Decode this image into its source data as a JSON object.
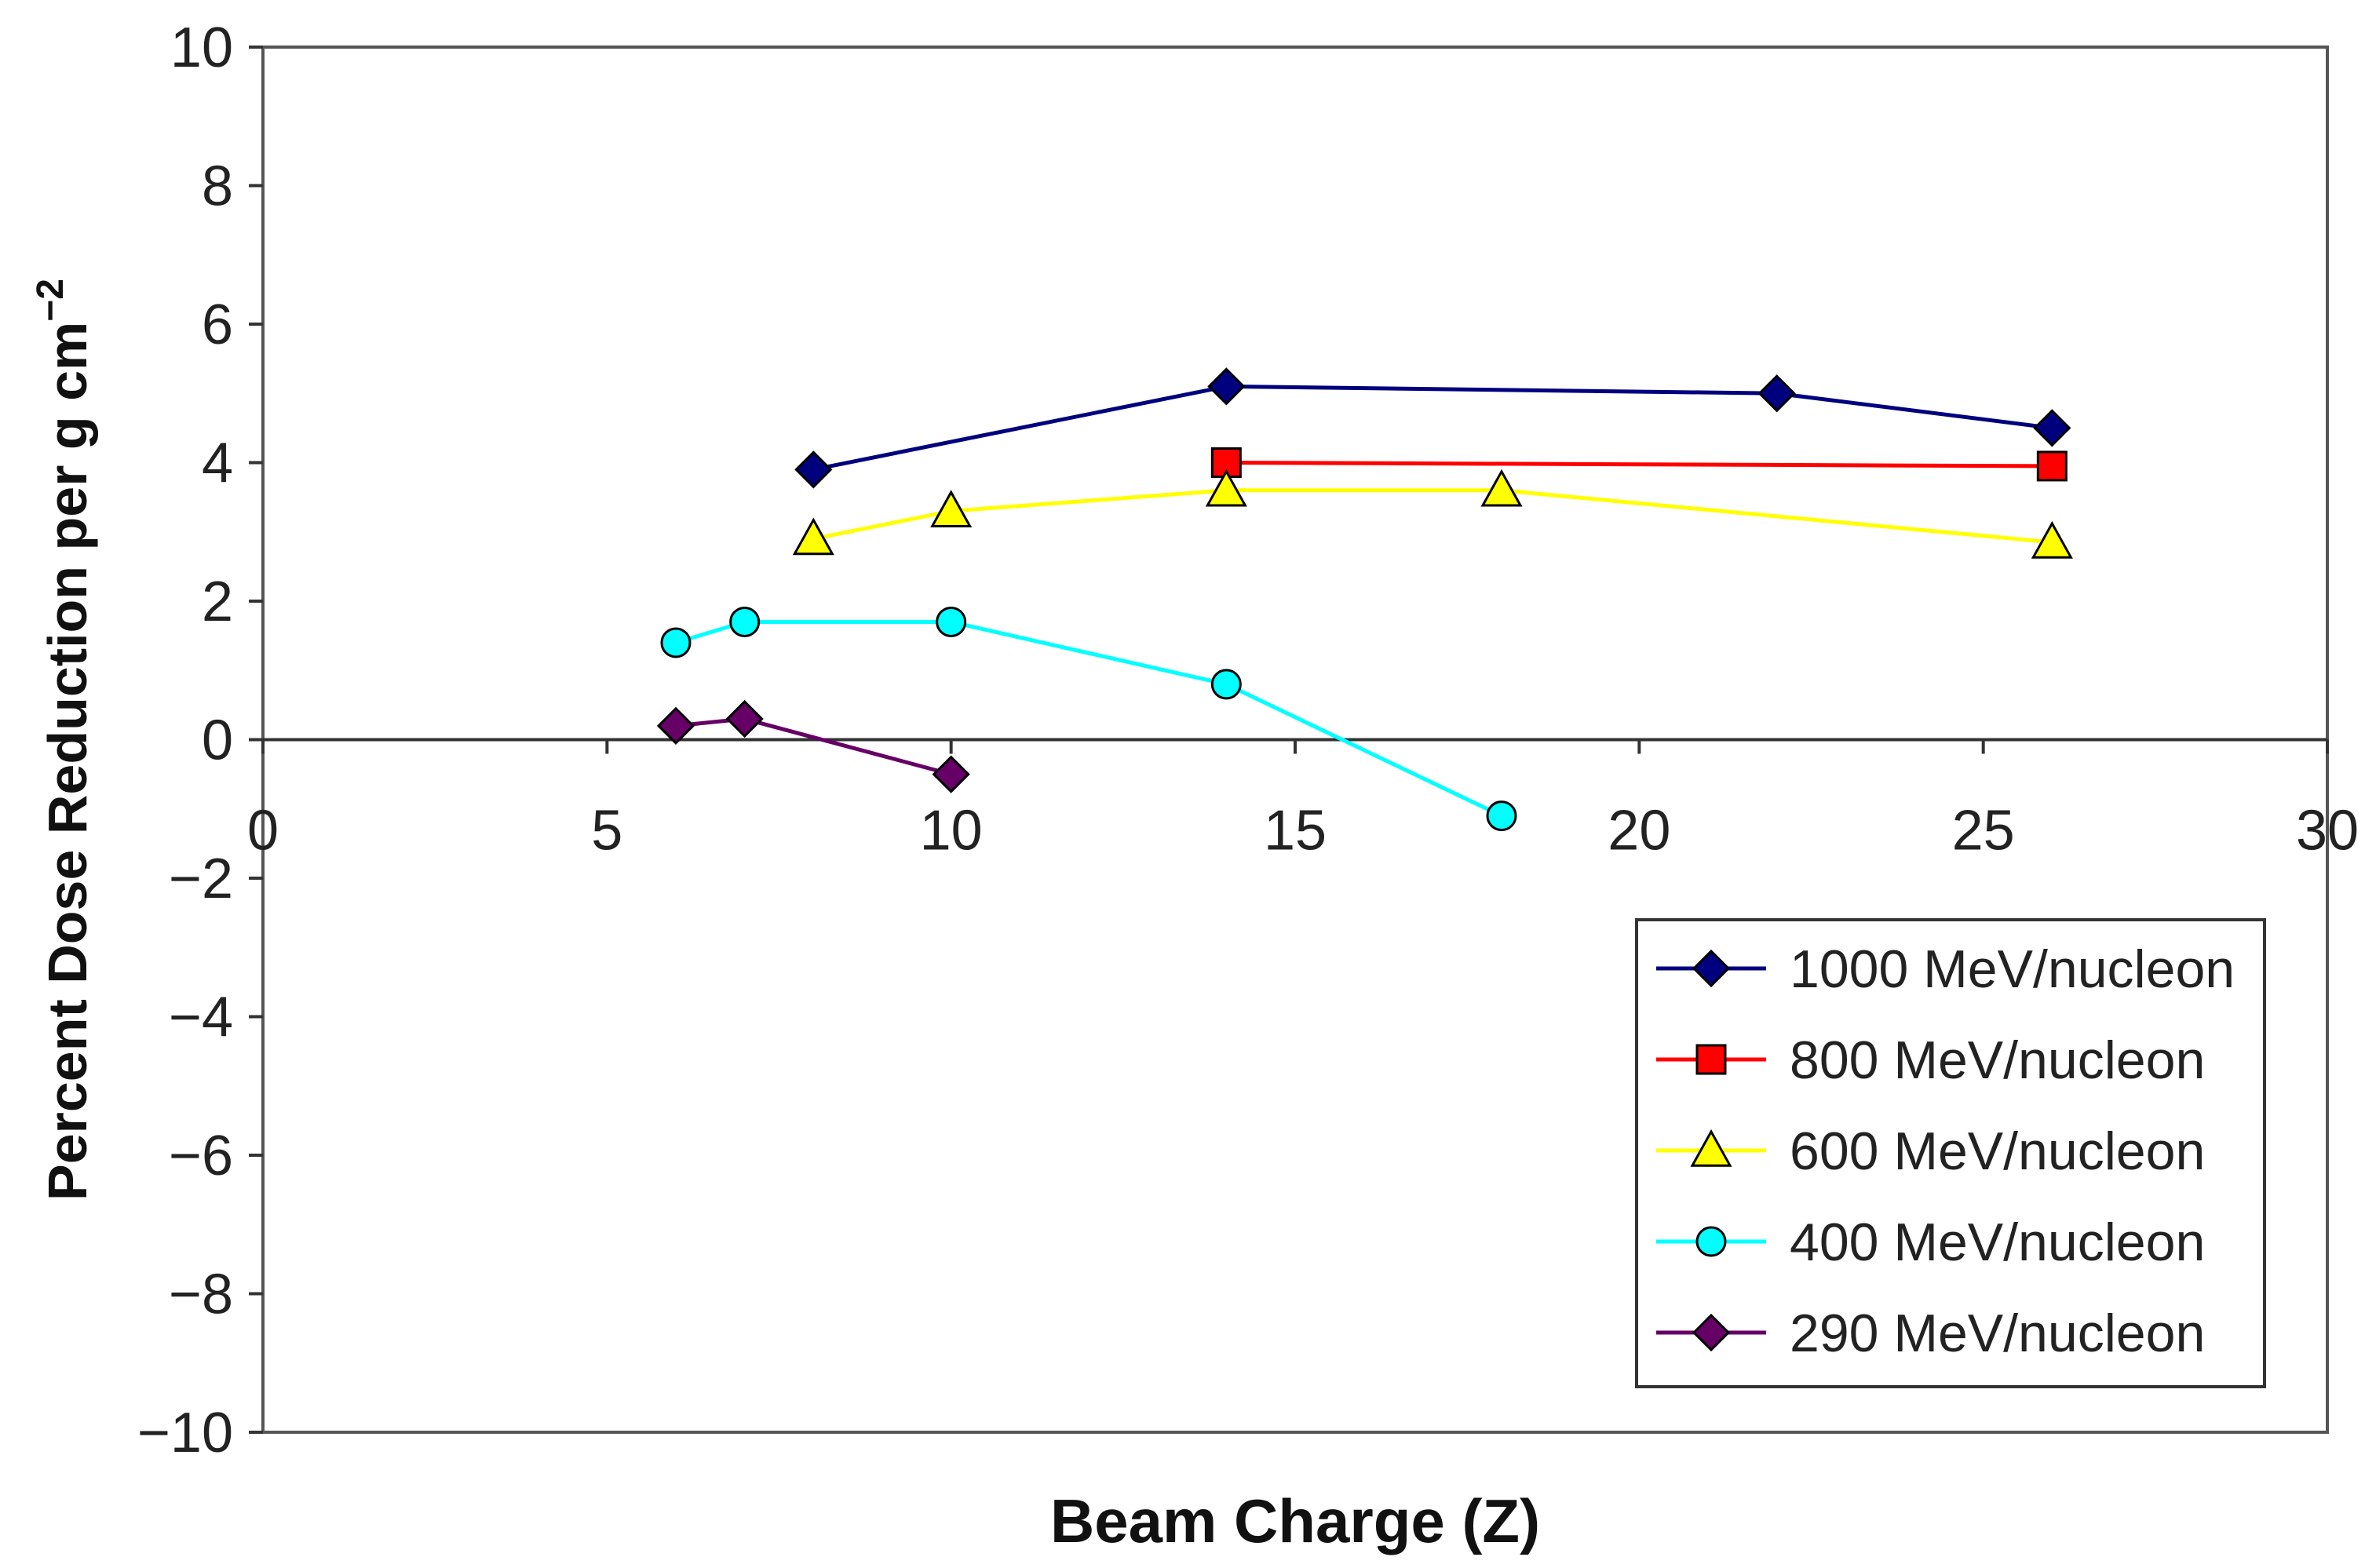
{
  "chart_data": {
    "type": "line",
    "title": "",
    "xlabel": "Beam Charge (Z)",
    "ylabel": "Percent Dose Reduction per g cm",
    "ylabel_superscript": "−2",
    "xlim": [
      0,
      30
    ],
    "ylim": [
      -10,
      10
    ],
    "x_ticks": [
      0,
      5,
      10,
      15,
      20,
      25,
      30
    ],
    "x_tick_labels": [
      "0",
      "5",
      "10",
      "15",
      "20",
      "25",
      "30"
    ],
    "y_ticks": [
      -10,
      -8,
      -6,
      -4,
      -2,
      0,
      2,
      4,
      6,
      8,
      10
    ],
    "y_tick_labels": [
      "−10",
      "−8",
      "−6",
      "−4",
      "−2",
      "0",
      "2",
      "4",
      "6",
      "8",
      "10"
    ],
    "grid": false,
    "legend_position": "bottom-right",
    "series": [
      {
        "name": "1000 MeV/nucleon",
        "color": "#00007f",
        "marker": "diamond",
        "marker_fill": "#00007f",
        "x": [
          8,
          14,
          22,
          26
        ],
        "y": [
          3.9,
          5.1,
          5.0,
          4.5
        ]
      },
      {
        "name": "800 MeV/nucleon",
        "color": "#ff0000",
        "marker": "square",
        "marker_fill": "#ff0000",
        "x": [
          14,
          26
        ],
        "y": [
          4.0,
          3.95
        ]
      },
      {
        "name": "600 MeV/nucleon",
        "color": "#ffff00",
        "marker": "triangle",
        "marker_fill": "#ffff00",
        "x": [
          8,
          10,
          14,
          18,
          26
        ],
        "y": [
          2.9,
          3.3,
          3.6,
          3.6,
          2.85
        ]
      },
      {
        "name": "400 MeV/nucleon",
        "color": "#00ffff",
        "marker": "circle",
        "marker_fill": "#00ffff",
        "x": [
          6,
          7,
          10,
          14,
          18
        ],
        "y": [
          1.4,
          1.7,
          1.7,
          0.8,
          -1.1
        ]
      },
      {
        "name": "290 MeV/nucleon",
        "color": "#660066",
        "marker": "diamond",
        "marker_fill": "#660066",
        "x": [
          6,
          7,
          10
        ],
        "y": [
          0.2,
          0.3,
          -0.5
        ]
      }
    ]
  }
}
